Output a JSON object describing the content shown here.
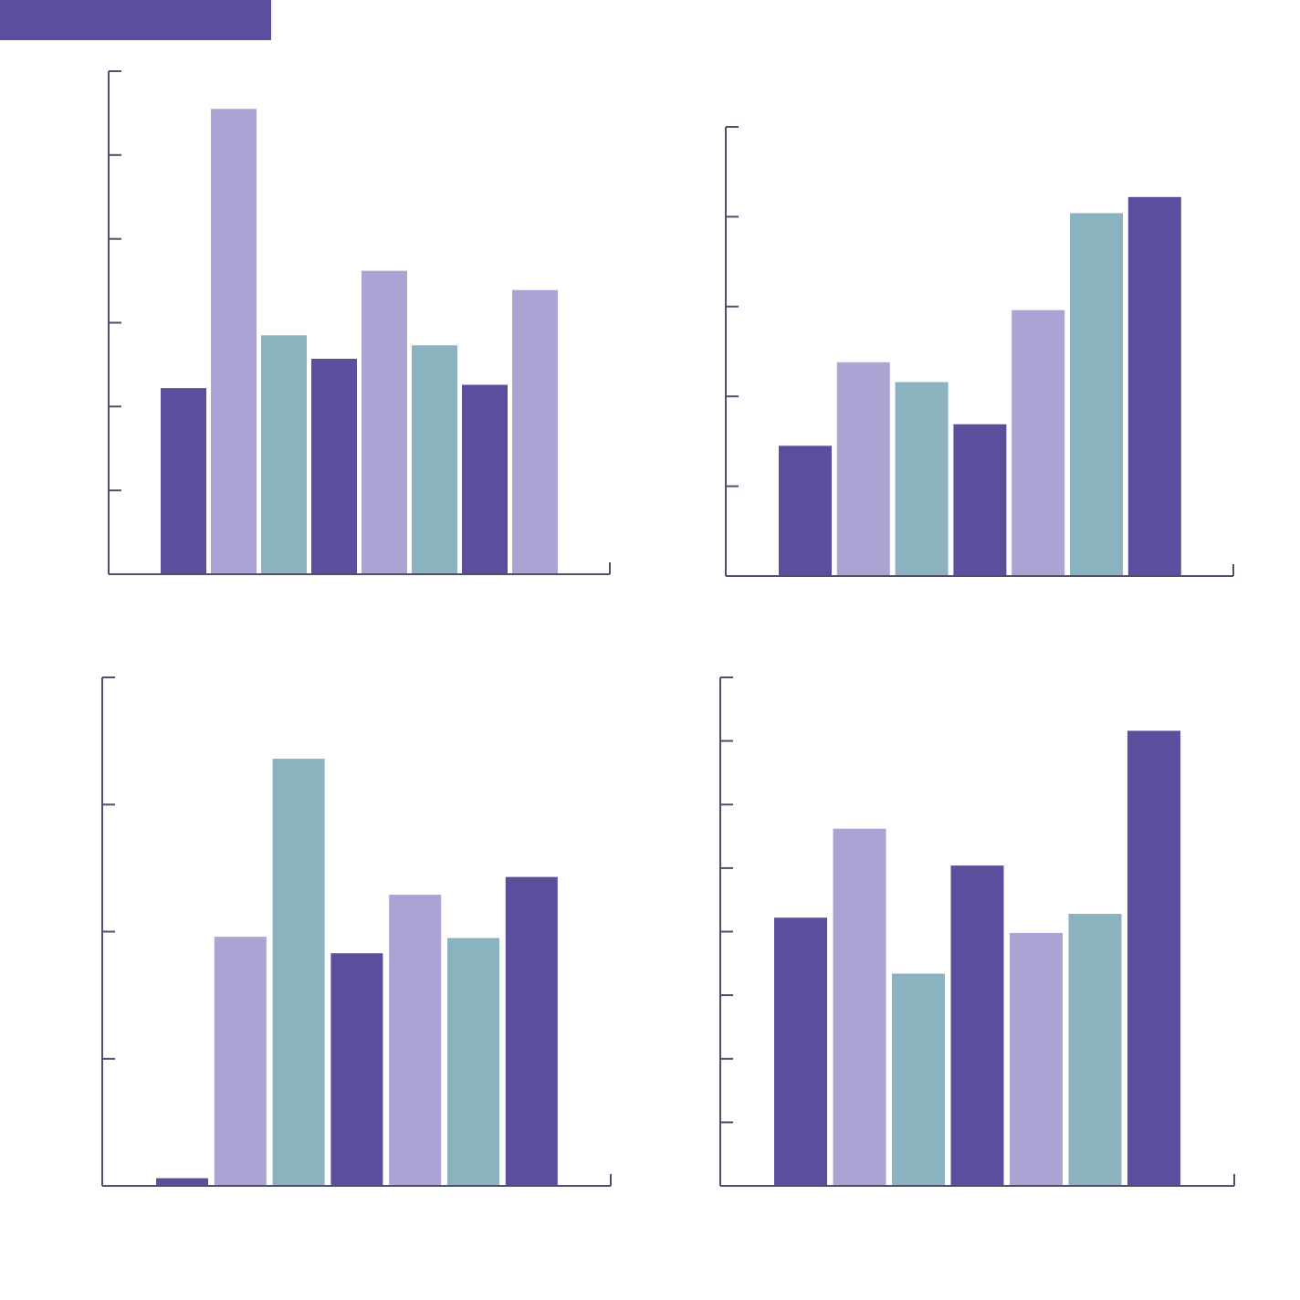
{
  "colors": {
    "header": "#5b4e9c",
    "axis": "#4d4f6e",
    "palette": [
      "#5b4e9c",
      "#aba3d3",
      "#8ab2bf"
    ]
  },
  "chart_data": [
    {
      "type": "bar",
      "title": "",
      "xlabel": "",
      "ylabel": "",
      "ylim": [
        0,
        6
      ],
      "yticks": [
        0,
        1,
        2,
        3,
        4,
        5,
        6
      ],
      "grid": false,
      "legend": "none",
      "values": [
        2.22,
        5.55,
        2.85,
        2.57,
        3.62,
        2.73,
        2.26,
        3.39
      ]
    },
    {
      "type": "bar",
      "title": "",
      "xlabel": "",
      "ylabel": "",
      "ylim": [
        0,
        5
      ],
      "yticks": [
        0,
        1,
        2,
        3,
        4,
        5
      ],
      "grid": false,
      "legend": "none",
      "values": [
        1.45,
        2.38,
        2.16,
        1.69,
        2.96,
        4.04,
        4.22
      ]
    },
    {
      "type": "bar",
      "title": "",
      "xlabel": "",
      "ylabel": "",
      "ylim": [
        0,
        4
      ],
      "yticks": [
        0,
        1,
        2,
        3,
        4
      ],
      "grid": false,
      "legend": "none",
      "values": [
        0.06,
        1.96,
        3.36,
        1.83,
        2.29,
        1.95,
        2.43
      ]
    },
    {
      "type": "bar",
      "title": "",
      "xlabel": "",
      "ylabel": "",
      "ylim": [
        0,
        8
      ],
      "yticks": [
        0,
        1,
        2,
        3,
        4,
        5,
        6,
        7,
        8
      ],
      "grid": false,
      "legend": "none",
      "values": [
        4.22,
        5.62,
        3.34,
        5.04,
        3.98,
        4.28,
        7.16
      ]
    }
  ]
}
